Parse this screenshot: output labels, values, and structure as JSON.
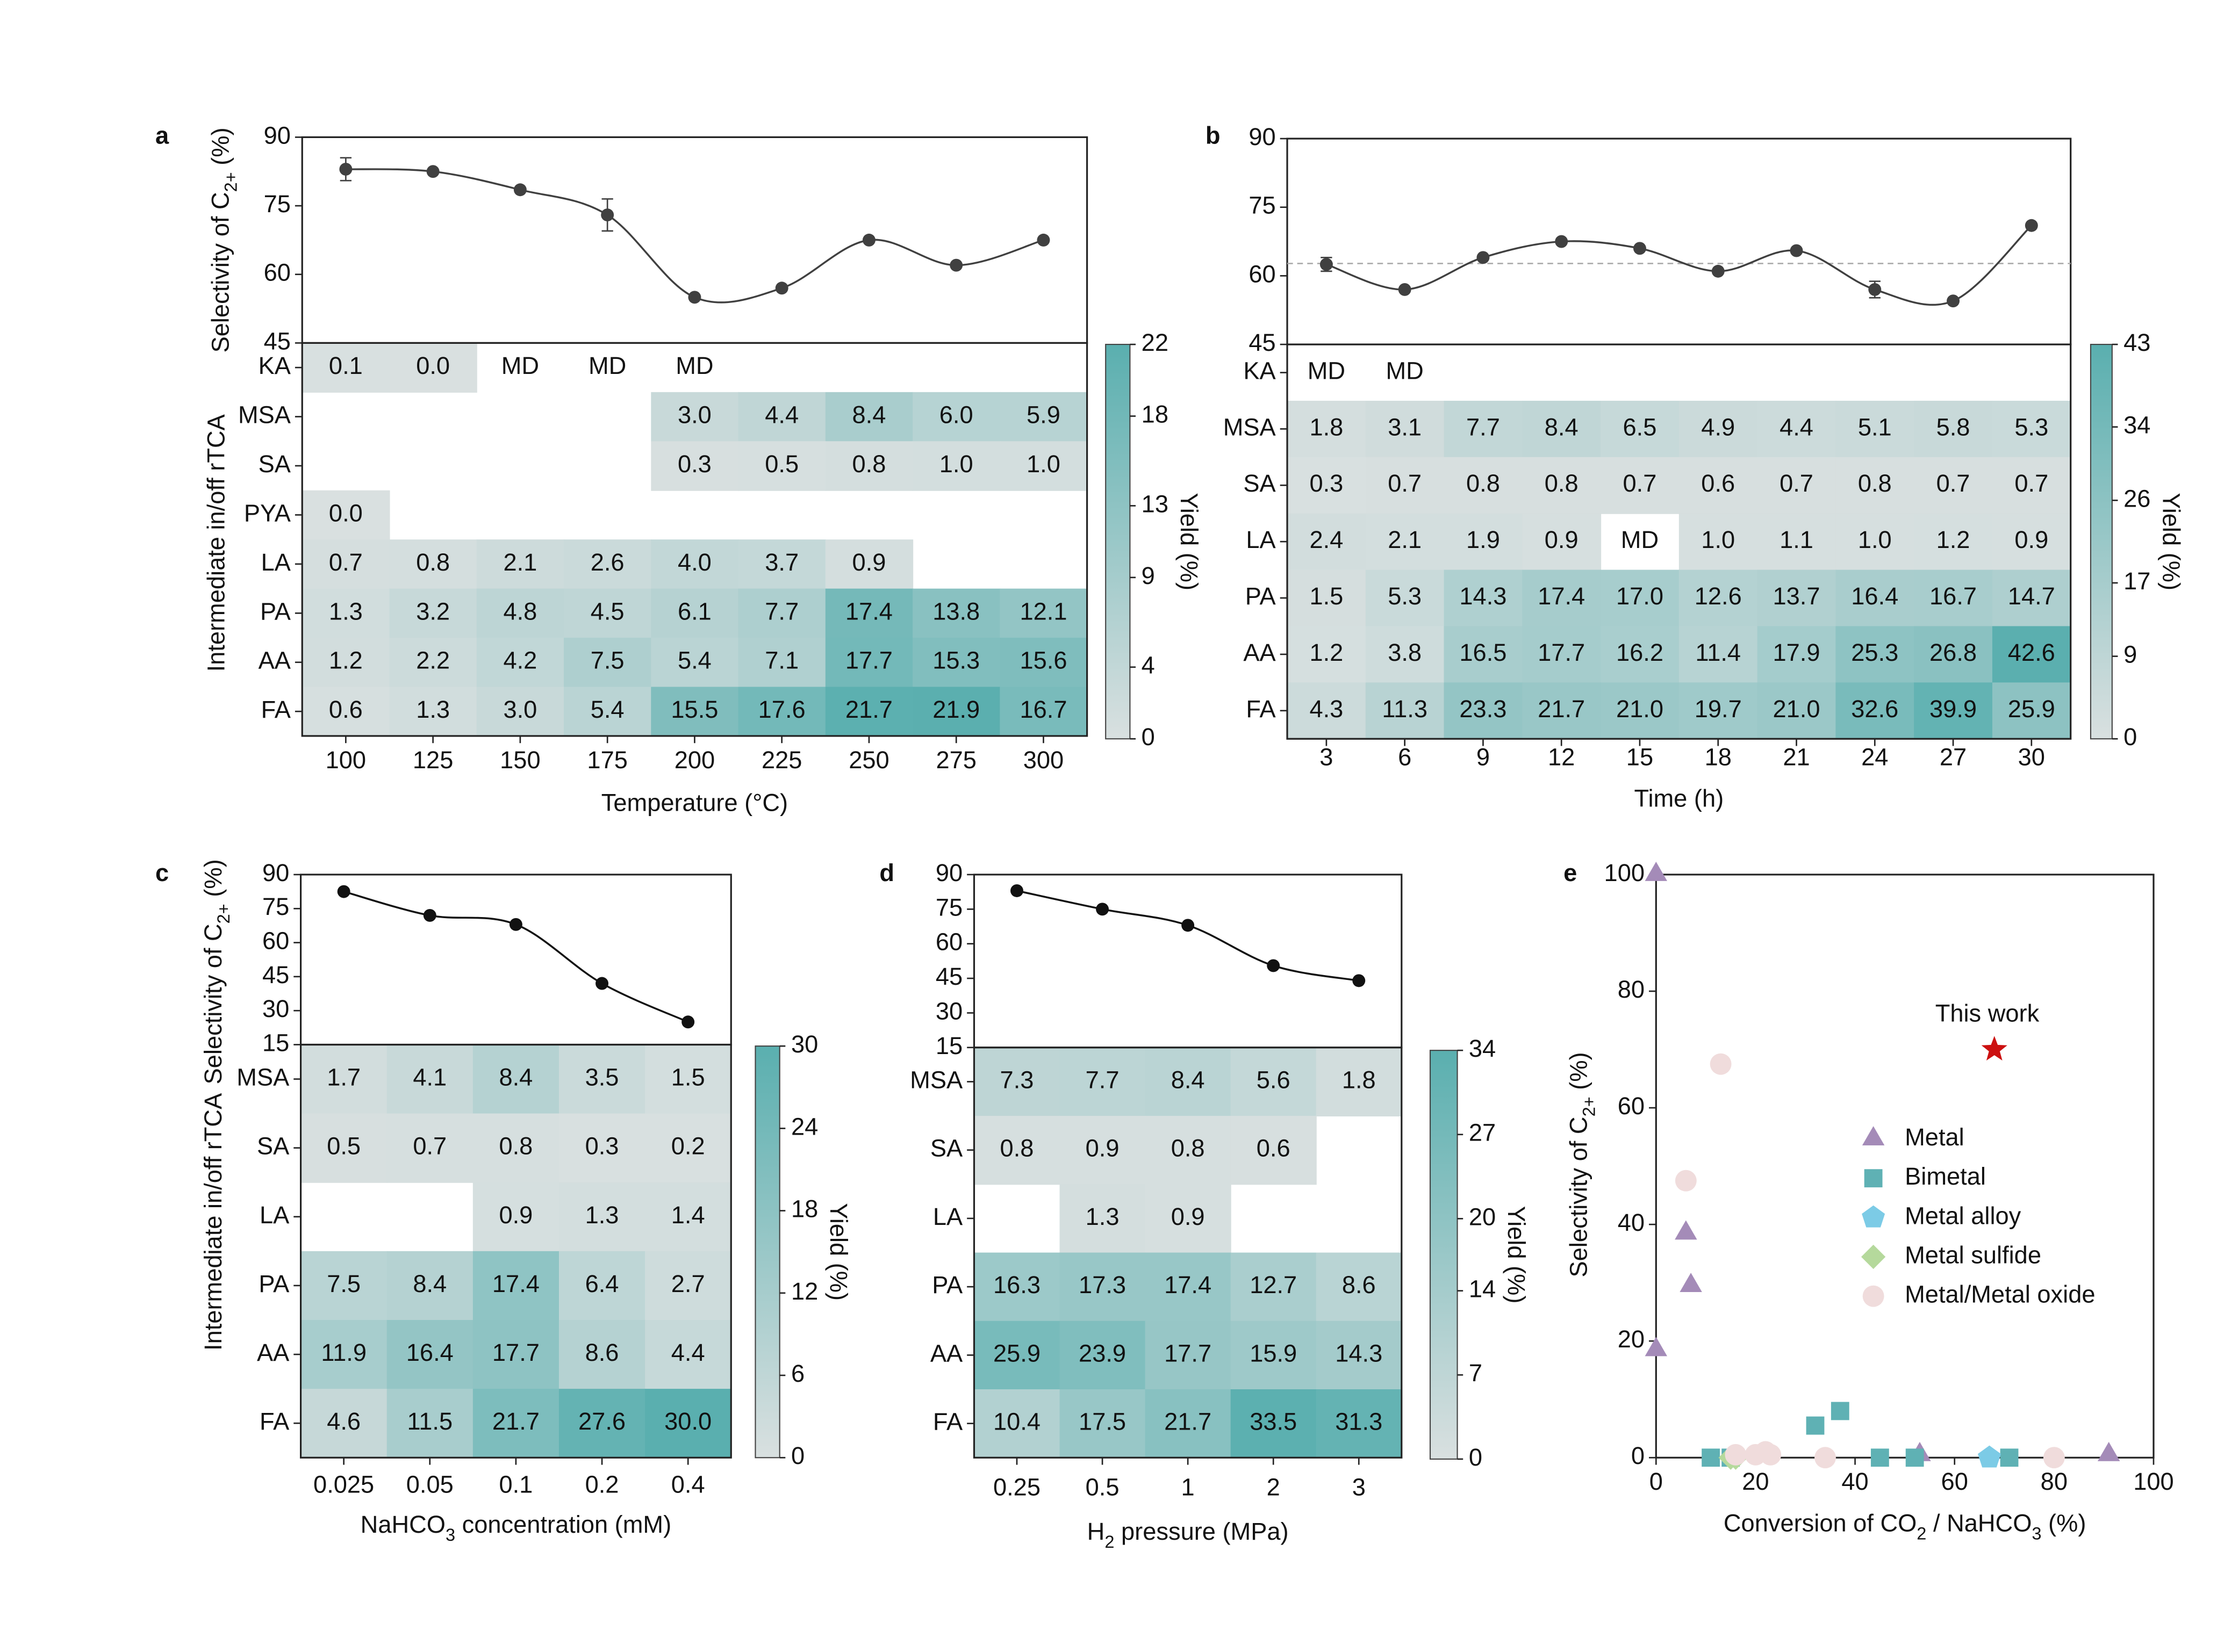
{
  "chart_data": [
    {
      "type": "heatmap",
      "panel": "a",
      "categories": [
        "100",
        "125",
        "150",
        "175",
        "200",
        "225",
        "250",
        "275",
        "300"
      ],
      "xlabel": [
        "Temperature (°C)"
      ],
      "line": {
        "ylabel": [
          "Selectivity of C",
          "2+",
          " (%)"
        ],
        "ylim": [
          45,
          90
        ],
        "yticks": [
          45,
          60,
          75,
          90
        ],
        "color": "#404040",
        "values": [
          83,
          82.5,
          78.5,
          73,
          55,
          57,
          67.5,
          62,
          67.5
        ],
        "errors": [
          2.5,
          null,
          null,
          3.5,
          null,
          null,
          null,
          null,
          null
        ]
      },
      "heatmap": {
        "ylabel": [
          "Intermediate in/off rTCA"
        ],
        "rows": [
          "KA",
          "MSA",
          "SA",
          "PYA",
          "LA",
          "PA",
          "AA",
          "FA"
        ],
        "values": [
          [
            0.1,
            0.0,
            null,
            null,
            null,
            null,
            null,
            null,
            null
          ],
          [
            null,
            null,
            null,
            null,
            3.0,
            4.4,
            8.4,
            6.0,
            5.9
          ],
          [
            null,
            null,
            null,
            null,
            0.3,
            0.5,
            0.8,
            1.0,
            1.0
          ],
          [
            0.0,
            null,
            null,
            null,
            null,
            null,
            null,
            null,
            null
          ],
          [
            0.7,
            0.8,
            2.1,
            2.6,
            4.0,
            3.7,
            0.9,
            null,
            null
          ],
          [
            1.3,
            3.2,
            4.8,
            4.5,
            6.1,
            7.7,
            17.4,
            13.8,
            12.1
          ],
          [
            1.2,
            2.2,
            4.2,
            7.5,
            5.4,
            7.1,
            17.7,
            15.3,
            15.6
          ],
          [
            0.6,
            1.3,
            3.0,
            5.4,
            15.5,
            17.6,
            21.7,
            21.9,
            16.7
          ]
        ],
        "value_labels": [
          [
            "0.1",
            "0.0",
            "MD",
            "MD",
            "MD",
            null,
            null,
            null,
            null
          ],
          [
            null,
            null,
            null,
            null,
            "3.0",
            "4.4",
            "8.4",
            "6.0",
            "5.9"
          ],
          [
            null,
            null,
            null,
            null,
            "0.3",
            "0.5",
            "0.8",
            "1.0",
            "1.0"
          ],
          [
            "0.0",
            null,
            null,
            null,
            null,
            null,
            null,
            null,
            null
          ],
          [
            "0.7",
            "0.8",
            "2.1",
            "2.6",
            "4.0",
            "3.7",
            "0.9",
            null,
            null
          ],
          [
            "1.3",
            "3.2",
            "4.8",
            "4.5",
            "6.1",
            "7.7",
            "17.4",
            "13.8",
            "12.1"
          ],
          [
            "1.2",
            "2.2",
            "4.2",
            "7.5",
            "5.4",
            "7.1",
            "17.7",
            "15.3",
            "15.6"
          ],
          [
            "0.6",
            "1.3",
            "3.0",
            "5.4",
            "15.5",
            "17.6",
            "21.7",
            "21.9",
            "16.7"
          ]
        ],
        "colorbar": {
          "label": "Yield (%)",
          "lim": [
            0,
            22
          ],
          "ticks": [
            0,
            4,
            9,
            13,
            18,
            22
          ],
          "colors": [
            "#d9e0e0",
            "#5aafaf"
          ]
        }
      }
    },
    {
      "type": "heatmap",
      "panel": "b",
      "categories": [
        "3",
        "6",
        "9",
        "12",
        "15",
        "18",
        "21",
        "24",
        "27",
        "30"
      ],
      "xlabel": [
        "Time (h)"
      ],
      "line": {
        "ylim": [
          45,
          90
        ],
        "yticks": [
          45,
          60,
          75,
          90
        ],
        "color": "#404040",
        "reference": 62.7,
        "values": [
          62.5,
          57,
          64,
          67.5,
          66,
          61,
          65.5,
          57,
          54.5,
          71
        ],
        "errors": [
          1.5,
          null,
          null,
          null,
          null,
          null,
          null,
          1.8,
          null,
          null
        ]
      },
      "heatmap": {
        "rows": [
          "KA",
          "MSA",
          "SA",
          "LA",
          "PA",
          "AA",
          "FA"
        ],
        "values": [
          [
            null,
            null,
            null,
            null,
            null,
            null,
            null,
            null,
            null,
            null
          ],
          [
            1.8,
            3.1,
            7.7,
            8.4,
            6.5,
            4.9,
            4.4,
            5.1,
            5.8,
            5.3
          ],
          [
            0.3,
            0.7,
            0.8,
            0.8,
            0.7,
            0.6,
            0.7,
            0.8,
            0.7,
            0.7
          ],
          [
            2.4,
            2.1,
            1.9,
            0.9,
            null,
            1.0,
            1.1,
            1.0,
            1.2,
            0.9
          ],
          [
            1.5,
            5.3,
            14.3,
            17.4,
            17.0,
            12.6,
            13.7,
            16.4,
            16.7,
            14.7
          ],
          [
            1.2,
            3.8,
            16.5,
            17.7,
            16.2,
            11.4,
            17.9,
            25.3,
            26.8,
            42.6
          ],
          [
            4.3,
            11.3,
            23.3,
            21.7,
            21.0,
            19.7,
            21.0,
            32.6,
            39.9,
            25.9
          ]
        ],
        "value_labels": [
          [
            "MD",
            "MD",
            null,
            null,
            null,
            null,
            null,
            null,
            null,
            null
          ],
          [
            "1.8",
            "3.1",
            "7.7",
            "8.4",
            "6.5",
            "4.9",
            "4.4",
            "5.1",
            "5.8",
            "5.3"
          ],
          [
            "0.3",
            "0.7",
            "0.8",
            "0.8",
            "0.7",
            "0.6",
            "0.7",
            "0.8",
            "0.7",
            "0.7"
          ],
          [
            "2.4",
            "2.1",
            "1.9",
            "0.9",
            "MD",
            "1.0",
            "1.1",
            "1.0",
            "1.2",
            "0.9"
          ],
          [
            "1.5",
            "5.3",
            "14.3",
            "17.4",
            "17.0",
            "12.6",
            "13.7",
            "16.4",
            "16.7",
            "14.7"
          ],
          [
            "1.2",
            "3.8",
            "16.5",
            "17.7",
            "16.2",
            "11.4",
            "17.9",
            "25.3",
            "26.8",
            "42.6"
          ],
          [
            "4.3",
            "11.3",
            "23.3",
            "21.7",
            "21.0",
            "19.7",
            "21.0",
            "32.6",
            "39.9",
            "25.9"
          ]
        ],
        "colorbar": {
          "label": "Yield (%)",
          "lim": [
            0,
            43
          ],
          "ticks": [
            0,
            9,
            17,
            26,
            34,
            43
          ],
          "colors": [
            "#d9e0e0",
            "#5aafaf"
          ]
        }
      }
    },
    {
      "type": "heatmap",
      "panel": "c",
      "categories": [
        "0.025",
        "0.05",
        "0.1",
        "0.2",
        "0.4"
      ],
      "xlabel": [
        "NaHCO",
        "3",
        " concentration (mM)"
      ],
      "line": {
        "ylabel": [
          "Selectivity of C",
          "2+",
          " (%)"
        ],
        "ylim": [
          15,
          90
        ],
        "yticks": [
          15,
          30,
          45,
          60,
          75,
          90
        ],
        "color": "#111111",
        "values": [
          82.5,
          72,
          68,
          42,
          25
        ]
      },
      "heatmap": {
        "ylabel": [
          "Intermediate in/off rTCA"
        ],
        "rows": [
          "MSA",
          "SA",
          "LA",
          "PA",
          "AA",
          "FA"
        ],
        "values": [
          [
            1.7,
            4.1,
            8.4,
            3.5,
            1.5
          ],
          [
            0.5,
            0.7,
            0.8,
            0.3,
            0.2
          ],
          [
            null,
            null,
            0.9,
            1.3,
            1.4
          ],
          [
            7.5,
            8.4,
            17.4,
            6.4,
            2.7
          ],
          [
            11.9,
            16.4,
            17.7,
            8.6,
            4.4
          ],
          [
            4.6,
            11.5,
            21.7,
            27.6,
            30.0
          ]
        ],
        "value_labels": [
          [
            "1.7",
            "4.1",
            "8.4",
            "3.5",
            "1.5"
          ],
          [
            "0.5",
            "0.7",
            "0.8",
            "0.3",
            "0.2"
          ],
          [
            null,
            null,
            "0.9",
            "1.3",
            "1.4"
          ],
          [
            "7.5",
            "8.4",
            "17.4",
            "6.4",
            "2.7"
          ],
          [
            "11.9",
            "16.4",
            "17.7",
            "8.6",
            "4.4"
          ],
          [
            "4.6",
            "11.5",
            "21.7",
            "27.6",
            "30.0"
          ]
        ],
        "colorbar": {
          "label": "Yield (%)",
          "lim": [
            0,
            30
          ],
          "ticks": [
            0,
            6,
            12,
            18,
            24,
            30
          ],
          "colors": [
            "#d9e0e0",
            "#5aafaf"
          ]
        }
      }
    },
    {
      "type": "heatmap",
      "panel": "d",
      "categories": [
        "0.25",
        "0.5",
        "1",
        "2",
        "3"
      ],
      "xlabel": [
        "H",
        "2",
        " pressure (MPa)"
      ],
      "line": {
        "ylim": [
          15,
          90
        ],
        "yticks": [
          15,
          30,
          45,
          60,
          75,
          90
        ],
        "color": "#111111",
        "values": [
          83,
          75,
          68,
          50.5,
          44
        ]
      },
      "heatmap": {
        "rows": [
          "MSA",
          "SA",
          "LA",
          "PA",
          "AA",
          "FA"
        ],
        "values": [
          [
            7.3,
            7.7,
            8.4,
            5.6,
            1.8
          ],
          [
            0.8,
            0.9,
            0.8,
            0.6,
            null
          ],
          [
            null,
            1.3,
            0.9,
            null,
            null
          ],
          [
            16.3,
            17.3,
            17.4,
            12.7,
            8.6
          ],
          [
            25.9,
            23.9,
            17.7,
            15.9,
            14.3
          ],
          [
            10.4,
            17.5,
            21.7,
            33.5,
            31.3
          ]
        ],
        "value_labels": [
          [
            "7.3",
            "7.7",
            "8.4",
            "5.6",
            "1.8"
          ],
          [
            "0.8",
            "0.9",
            "0.8",
            "0.6",
            null
          ],
          [
            null,
            "1.3",
            "0.9",
            null,
            null
          ],
          [
            "16.3",
            "17.3",
            "17.4",
            "12.7",
            "8.6"
          ],
          [
            "25.9",
            "23.9",
            "17.7",
            "15.9",
            "14.3"
          ],
          [
            "10.4",
            "17.5",
            "21.7",
            "33.5",
            "31.3"
          ]
        ],
        "colorbar": {
          "label": "Yield (%)",
          "lim": [
            0,
            34
          ],
          "ticks": [
            0,
            7,
            14,
            20,
            27,
            34
          ],
          "colors": [
            "#d9e0e0",
            "#5aafaf"
          ]
        }
      }
    },
    {
      "type": "scatter",
      "panel": "e",
      "xlabel": [
        "Conversion of CO",
        "2",
        " / NaHCO",
        "3",
        " (%)"
      ],
      "ylabel": [
        "Selectivity of C",
        "2+",
        " (%)"
      ],
      "xlim": [
        0,
        100
      ],
      "xticks": [
        0,
        20,
        40,
        60,
        80,
        100
      ],
      "ylim": [
        0,
        100
      ],
      "yticks": [
        0,
        20,
        40,
        60,
        80,
        100
      ],
      "legend": "right",
      "series": [
        {
          "name": "Metal",
          "color": "#a48bb8",
          "marker": "triangle",
          "x": [
            0,
            0,
            6,
            7,
            53,
            91
          ],
          "values": [
            100,
            18.5,
            38.5,
            29.5,
            0.5,
            0.5
          ]
        },
        {
          "name": "Bimetal",
          "color": "#5fb1b4",
          "marker": "square",
          "x": [
            11,
            15,
            32,
            37,
            45,
            52,
            71
          ],
          "values": [
            0,
            0,
            5.5,
            8,
            0,
            0,
            0
          ]
        },
        {
          "name": "Metal alloy",
          "color": "#7ccbe6",
          "marker": "pentagon",
          "x": [
            67
          ],
          "values": [
            0
          ]
        },
        {
          "name": "Metal sulfide",
          "color": "#b5d99c",
          "marker": "diamond",
          "x": [
            15,
            16
          ],
          "values": [
            0,
            0
          ]
        },
        {
          "name": "Metal/Metal oxide",
          "color": "#f0dcdc",
          "marker": "circle",
          "x": [
            6,
            13,
            16,
            20,
            22,
            23,
            34,
            80
          ],
          "values": [
            47.5,
            67.5,
            0.5,
            0.5,
            1,
            0.5,
            0,
            0
          ]
        }
      ],
      "highlight": {
        "label": "This work",
        "x": 68,
        "y": 70,
        "color": "#cc1010",
        "marker": "star"
      }
    }
  ]
}
